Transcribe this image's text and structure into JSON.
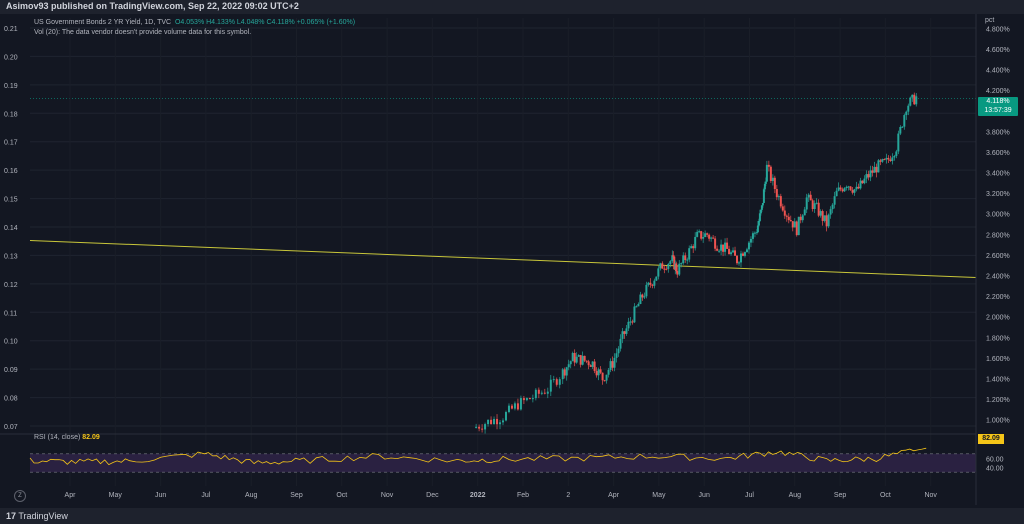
{
  "header": {
    "attribution": "Asimov93 published on TradingView.com, Sep 22, 2022 09:02 UTC+2"
  },
  "legend": {
    "symbol": "US Government Bonds 2 YR Yield, 1D, TVC",
    "ohlc": {
      "o": "O4.053%",
      "h": "H4.133%",
      "l": "L4.048%",
      "c": "C4.118%",
      "chg": "+0.065% (+1.60%)"
    },
    "volume_note": "Vol (20): The data vendor doesn't provide volume data for this symbol."
  },
  "right_scale": {
    "unit": "pct"
  },
  "price_badge": {
    "value": "4.118%",
    "countdown": "13:57:39"
  },
  "rsi": {
    "label": "RSI (14, close)",
    "value": "82.09",
    "upper_band": 70,
    "lower_band": 30,
    "ticks": [
      "60.00",
      "40.00"
    ]
  },
  "footer": {
    "brand": "TradingView"
  },
  "colors": {
    "up": "#26a69a",
    "down": "#ef5350",
    "trendline": "#c8c63a",
    "rsi": "#f5c518",
    "rsi_band": "#2a2141"
  },
  "chart_data": {
    "type": "candlestick",
    "left_axis_ticks": [
      "0.21",
      "0.20",
      "0.19",
      "0.18",
      "0.17",
      "0.16",
      "0.15",
      "0.14",
      "0.13",
      "0.12",
      "0.11",
      "0.10",
      "0.09",
      "0.08",
      "0.07"
    ],
    "right_axis_ticks": [
      "4.800%",
      "4.600%",
      "4.400%",
      "4.200%",
      "3.800%",
      "3.600%",
      "3.400%",
      "3.200%",
      "3.000%",
      "2.800%",
      "2.600%",
      "2.400%",
      "2.200%",
      "2.000%",
      "1.800%",
      "1.600%",
      "1.400%",
      "1.200%",
      "1.000%"
    ],
    "x_axis_ticks": [
      "Apr",
      "May",
      "Jun",
      "Jul",
      "Aug",
      "Sep",
      "Oct",
      "Nov",
      "Dec",
      "2022",
      "Feb",
      "2",
      "Apr",
      "May",
      "Jun",
      "Jul",
      "Aug",
      "Sep",
      "Oct",
      "Nov"
    ],
    "price_ylim": [
      0.9,
      4.9
    ],
    "close_path": [
      [
        2021.94,
        0.92
      ],
      [
        2021.97,
        0.98
      ],
      [
        2022.0,
        1.03
      ],
      [
        2022.03,
        1.15
      ],
      [
        2022.06,
        1.22
      ],
      [
        2022.09,
        1.3
      ],
      [
        2022.12,
        1.46
      ],
      [
        2022.14,
        1.6
      ],
      [
        2022.16,
        1.58
      ],
      [
        2022.18,
        1.55
      ],
      [
        2022.2,
        1.4
      ],
      [
        2022.22,
        1.55
      ],
      [
        2022.24,
        1.8
      ],
      [
        2022.26,
        2.0
      ],
      [
        2022.28,
        2.2
      ],
      [
        2022.3,
        2.35
      ],
      [
        2022.32,
        2.5
      ],
      [
        2022.34,
        2.55
      ],
      [
        2022.35,
        2.45
      ],
      [
        2022.37,
        2.6
      ],
      [
        2022.39,
        2.78
      ],
      [
        2022.41,
        2.8
      ],
      [
        2022.43,
        2.7
      ],
      [
        2022.45,
        2.65
      ],
      [
        2022.47,
        2.55
      ],
      [
        2022.49,
        2.7
      ],
      [
        2022.51,
        2.85
      ],
      [
        2022.52,
        3.05
      ],
      [
        2022.53,
        3.45
      ],
      [
        2022.55,
        3.2
      ],
      [
        2022.57,
        3.0
      ],
      [
        2022.59,
        2.85
      ],
      [
        2022.61,
        3.15
      ],
      [
        2022.63,
        3.05
      ],
      [
        2022.65,
        2.9
      ],
      [
        2022.67,
        3.2
      ],
      [
        2022.69,
        3.3
      ],
      [
        2022.71,
        3.22
      ],
      [
        2022.73,
        3.35
      ],
      [
        2022.75,
        3.45
      ],
      [
        2022.77,
        3.5
      ],
      [
        2022.79,
        3.65
      ],
      [
        2022.81,
        4.05
      ],
      [
        2022.83,
        4.13
      ]
    ],
    "trendline": [
      [
        2021.05,
        2.74
      ],
      [
        2022.95,
        2.38
      ]
    ],
    "rsi_path": [
      [
        2021.05,
        55
      ],
      [
        2021.15,
        52
      ],
      [
        2021.25,
        54
      ],
      [
        2021.4,
        70
      ],
      [
        2021.5,
        50
      ],
      [
        2021.6,
        55
      ],
      [
        2021.75,
        65
      ],
      [
        2021.9,
        55
      ],
      [
        2022.0,
        58
      ],
      [
        2022.15,
        60
      ],
      [
        2022.3,
        65
      ],
      [
        2022.45,
        60
      ],
      [
        2022.55,
        75
      ],
      [
        2022.65,
        55
      ],
      [
        2022.75,
        60
      ],
      [
        2022.85,
        82.09
      ]
    ]
  }
}
